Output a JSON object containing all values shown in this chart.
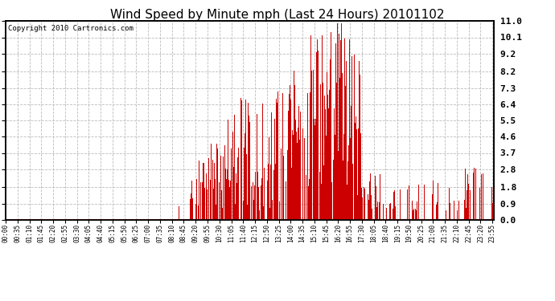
{
  "title": "Wind Speed by Minute mph (Last 24 Hours) 20101102",
  "copyright": "Copyright 2010 Cartronics.com",
  "bar_color": "#cc0000",
  "background_color": "#ffffff",
  "plot_bg_color": "#ffffff",
  "yticks": [
    0.0,
    0.9,
    1.8,
    2.8,
    3.7,
    4.6,
    5.5,
    6.4,
    7.3,
    8.2,
    9.2,
    10.1,
    11.0
  ],
  "ymin": 0.0,
  "ymax": 11.0,
  "grid_color": "#bbbbbb",
  "grid_style": "--",
  "title_fontsize": 11,
  "copyright_fontsize": 6.5,
  "ylabel_fontsize": 8,
  "xlabel_fontsize": 5.5,
  "tick_interval": 35,
  "n_minutes": 1440
}
